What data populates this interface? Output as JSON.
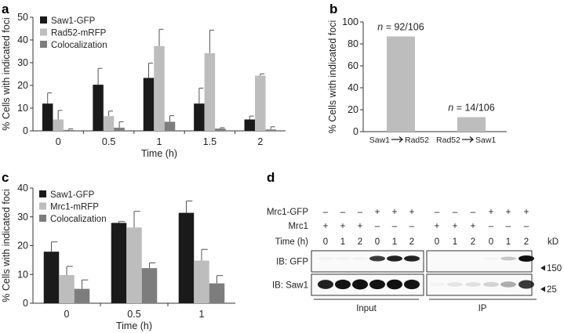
{
  "colors": {
    "saw1": "#1a1a1a",
    "partner": "#bdbdbd",
    "coloc": "#7d7d7d",
    "b_bar": "#bdbdbd"
  },
  "chart_data": [
    {
      "panel": "a",
      "type": "bar",
      "categories": [
        "0",
        "0.5",
        "1",
        "1.5",
        "2"
      ],
      "xlabel": "Time (h)",
      "ylabel": "% Cells with indicated foci",
      "ylim": [
        0,
        50
      ],
      "yticks": [
        "0",
        "10",
        "20",
        "30",
        "40",
        "50"
      ],
      "legend_position": "top-left",
      "series": [
        {
          "name": "Saw1-GFP",
          "values": [
            12,
            20.3,
            23.3,
            12,
            5
          ],
          "errors": [
            4.7,
            7.2,
            6.5,
            6.8,
            1.5
          ]
        },
        {
          "name": "Rad52-mRFP",
          "values": [
            5,
            6.5,
            37.3,
            34.2,
            24.3
          ],
          "errors": [
            4,
            2.2,
            7.4,
            10.1,
            0.8
          ]
        },
        {
          "name": "Colocalization",
          "values": [
            0.4,
            1.4,
            4,
            1,
            0.6
          ],
          "errors": [
            0.5,
            2.6,
            2.7,
            0.4,
            1.2
          ]
        }
      ]
    },
    {
      "panel": "b",
      "type": "bar",
      "categories": [
        {
          "from": "Saw1",
          "to": "Rad52"
        },
        {
          "from": "Rad52",
          "to": "Saw1"
        }
      ],
      "values": [
        86.8,
        13.2
      ],
      "annotations": [
        {
          "n": "n",
          "text": " = 92/106"
        },
        {
          "n": "n",
          "text": " = 14/106"
        }
      ],
      "ylabel": "% Cells with indicated foci",
      "ylim": [
        0,
        100
      ],
      "yticks": [
        "0",
        "20",
        "40",
        "60",
        "80",
        "100"
      ]
    },
    {
      "panel": "c",
      "type": "bar",
      "categories": [
        "0",
        "0.5",
        "1"
      ],
      "xlabel": "Time (h)",
      "ylabel": "% Cells with indicated foci",
      "ylim": [
        0,
        40
      ],
      "yticks": [
        "0",
        "10",
        "20",
        "30",
        "40"
      ],
      "legend_position": "top-left",
      "series": [
        {
          "name": "Saw1-GFP",
          "values": [
            17.9,
            27.9,
            31.4
          ],
          "errors": [
            3.4,
            0.5,
            4.1
          ]
        },
        {
          "name": "Mrc1-mRFP",
          "values": [
            9.8,
            26.3,
            14.8
          ],
          "errors": [
            3,
            5.6,
            3.9
          ]
        },
        {
          "name": "Colocalization",
          "values": [
            5,
            12.2,
            6.9
          ],
          "errors": [
            3.1,
            1.8,
            2.7
          ]
        }
      ]
    }
  ],
  "blot": {
    "panel": "d",
    "row_labels": [
      "Mrc1-GFP",
      "Mrc1",
      "Time (h)"
    ],
    "mrc1_gfp": [
      "–",
      "–",
      "–",
      "+",
      "+",
      "+",
      "–",
      "–",
      "–",
      "+",
      "+",
      "+"
    ],
    "mrc1": [
      "+",
      "+",
      "+",
      "–",
      "–",
      "–",
      "+",
      "+",
      "+",
      "–",
      "–",
      "–"
    ],
    "time": [
      "0",
      "1",
      "2",
      "0",
      "1",
      "2",
      "0",
      "1",
      "2",
      "0",
      "1",
      "2"
    ],
    "kd_label": "kD",
    "ib_gfp": "IB: GFP",
    "ib_saw1": "IB: Saw1",
    "marker_150": "150",
    "marker_25": "25",
    "input_label": "Input",
    "ip_label": "IP",
    "gfp_band_intensity": [
      0.03,
      0.03,
      0.03,
      0.75,
      0.85,
      0.85,
      0,
      0,
      0,
      0.02,
      0.2,
      1
    ],
    "saw1_band_intensity": [
      0.85,
      0.9,
      1,
      0.9,
      0.95,
      0.9,
      0.03,
      0.08,
      0.1,
      0.15,
      0.3,
      0.75
    ]
  }
}
